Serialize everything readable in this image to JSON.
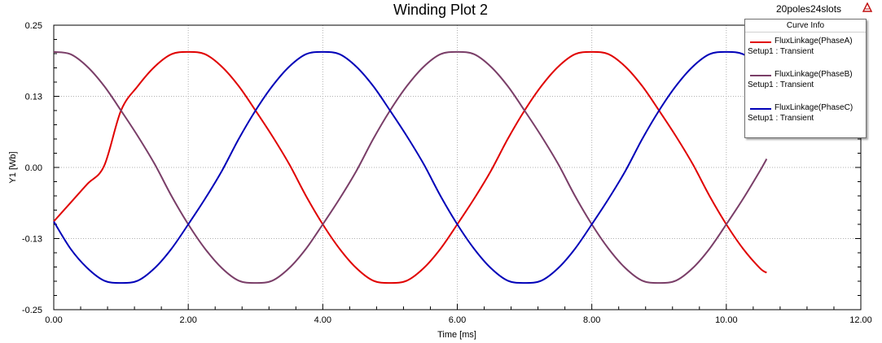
{
  "design_name": "20poles24slots",
  "chart_data": {
    "type": "line",
    "title": "Winding Plot 2",
    "xlabel": "Time [ms]",
    "ylabel": "Y1 [Wb]",
    "xlim": [
      0,
      12
    ],
    "ylim": [
      -0.25,
      0.25
    ],
    "xticks": [
      "0.00",
      "2.00",
      "4.00",
      "6.00",
      "8.00",
      "10.00",
      "12.00"
    ],
    "yticks": [
      "0.25",
      "0.13",
      "0.00",
      "-0.13",
      "-0.25"
    ],
    "grid": true,
    "legend_title": "Curve Info",
    "legend_position": "top-right",
    "series": [
      {
        "name": "FluxLinkage(PhaseA)",
        "subtitle": "Setup1 : Transient",
        "color": "#e00000",
        "x": [
          0.0,
          0.25,
          0.5,
          0.75,
          1.0,
          1.25,
          1.5,
          1.75,
          2.0,
          2.25,
          2.5,
          2.75,
          3.0,
          3.25,
          3.5,
          3.75,
          4.0,
          4.25,
          4.5,
          4.75,
          5.0,
          5.25,
          5.5,
          5.75,
          6.0,
          6.25,
          6.5,
          6.75,
          7.0,
          7.25,
          7.5,
          7.75,
          8.0,
          8.25,
          8.5,
          8.75,
          9.0,
          9.25,
          9.5,
          9.75,
          10.0,
          10.25,
          10.5,
          10.6
        ],
        "values": [
          -0.095,
          -0.062,
          -0.029,
          0.003,
          0.1,
          0.143,
          0.177,
          0.199,
          0.203,
          0.199,
          0.177,
          0.143,
          0.1,
          0.055,
          0.006,
          -0.05,
          -0.1,
          -0.143,
          -0.177,
          -0.199,
          -0.203,
          -0.199,
          -0.177,
          -0.143,
          -0.1,
          -0.055,
          -0.006,
          0.05,
          0.1,
          0.143,
          0.177,
          0.199,
          0.203,
          0.199,
          0.177,
          0.143,
          0.1,
          0.055,
          0.006,
          -0.05,
          -0.1,
          -0.143,
          -0.177,
          -0.185
        ]
      },
      {
        "name": "FluxLinkage(PhaseB)",
        "subtitle": "Setup1 : Transient",
        "color": "#7a3e68",
        "x": [
          0.0,
          0.25,
          0.5,
          0.75,
          1.0,
          1.25,
          1.5,
          1.75,
          2.0,
          2.25,
          2.5,
          2.75,
          3.0,
          3.25,
          3.5,
          3.75,
          4.0,
          4.25,
          4.5,
          4.75,
          5.0,
          5.25,
          5.5,
          5.75,
          6.0,
          6.25,
          6.5,
          6.75,
          7.0,
          7.25,
          7.5,
          7.75,
          8.0,
          8.25,
          8.5,
          8.75,
          9.0,
          9.25,
          9.5,
          9.75,
          10.0,
          10.25,
          10.5,
          10.6
        ],
        "values": [
          0.203,
          0.199,
          0.177,
          0.143,
          0.1,
          0.055,
          0.006,
          -0.05,
          -0.1,
          -0.143,
          -0.177,
          -0.199,
          -0.203,
          -0.199,
          -0.177,
          -0.143,
          -0.1,
          -0.055,
          -0.006,
          0.05,
          0.1,
          0.143,
          0.177,
          0.199,
          0.203,
          0.199,
          0.177,
          0.143,
          0.1,
          0.055,
          0.006,
          -0.05,
          -0.1,
          -0.143,
          -0.177,
          -0.199,
          -0.203,
          -0.199,
          -0.177,
          -0.143,
          -0.1,
          -0.055,
          -0.006,
          0.015
        ]
      },
      {
        "name": "FluxLinkage(PhaseC)",
        "subtitle": "Setup1 : Transient",
        "color": "#0000b8",
        "x": [
          0.0,
          0.25,
          0.5,
          0.75,
          1.0,
          1.25,
          1.5,
          1.75,
          2.0,
          2.25,
          2.5,
          2.75,
          3.0,
          3.25,
          3.5,
          3.75,
          4.0,
          4.25,
          4.5,
          4.75,
          5.0,
          5.25,
          5.5,
          5.75,
          6.0,
          6.25,
          6.5,
          6.75,
          7.0,
          7.25,
          7.5,
          7.75,
          8.0,
          8.25,
          8.5,
          8.75,
          9.0,
          9.25,
          9.5,
          9.75,
          10.0,
          10.25,
          10.5
        ],
        "values": [
          -0.095,
          -0.143,
          -0.177,
          -0.199,
          -0.203,
          -0.199,
          -0.177,
          -0.143,
          -0.1,
          -0.055,
          -0.006,
          0.05,
          0.1,
          0.143,
          0.177,
          0.199,
          0.203,
          0.199,
          0.177,
          0.143,
          0.1,
          0.055,
          0.006,
          -0.05,
          -0.1,
          -0.143,
          -0.177,
          -0.199,
          -0.203,
          -0.199,
          -0.177,
          -0.143,
          -0.1,
          -0.055,
          -0.006,
          0.05,
          0.1,
          0.143,
          0.177,
          0.199,
          0.203,
          0.199,
          0.177
        ]
      }
    ]
  }
}
